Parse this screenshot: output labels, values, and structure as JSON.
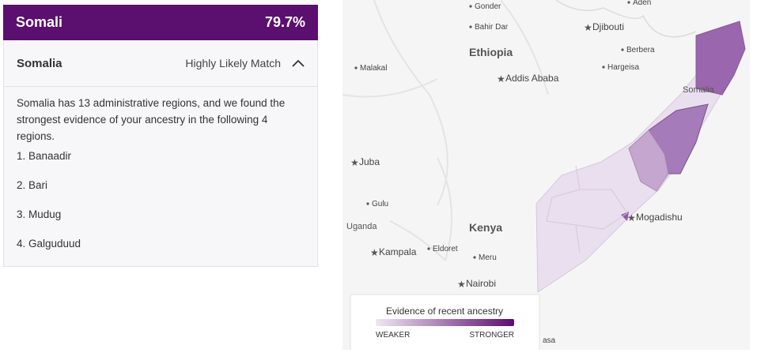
{
  "panel": {
    "title": "Somali",
    "percent": "79.7%",
    "country": "Somalia",
    "match": "Highly Likely Match",
    "description": "Somalia has 13 administrative regions, and we found the strongest evidence of your ancestry in the following 4 regions.",
    "regions": [
      "1. Banaadir",
      "2. Bari",
      "3. Mudug",
      "4. Galguduud"
    ]
  },
  "map": {
    "labels": [
      {
        "text": "Aden",
        "kind": "city"
      },
      {
        "text": "Gonder",
        "kind": "city"
      },
      {
        "text": "Bahir Dar",
        "kind": "city"
      },
      {
        "text": "Djibouti",
        "kind": "capital"
      },
      {
        "text": "Berbera",
        "kind": "city"
      },
      {
        "text": "Ethiopia",
        "kind": "country"
      },
      {
        "text": "Malakal",
        "kind": "city"
      },
      {
        "text": "Addis Ababa",
        "kind": "capital"
      },
      {
        "text": "Hargeisa",
        "kind": "city"
      },
      {
        "text": "Somalia",
        "kind": "country-small"
      },
      {
        "text": "Juba",
        "kind": "capital"
      },
      {
        "text": "Gulu",
        "kind": "city"
      },
      {
        "text": "Uganda",
        "kind": "country-small"
      },
      {
        "text": "Kenya",
        "kind": "country"
      },
      {
        "text": "Eldoret",
        "kind": "city"
      },
      {
        "text": "Kampala",
        "kind": "capital"
      },
      {
        "text": "Meru",
        "kind": "city"
      },
      {
        "text": "Mogadishu",
        "kind": "capital"
      },
      {
        "text": "Nairobi",
        "kind": "capital"
      },
      {
        "text": "asa",
        "kind": "city"
      }
    ],
    "legend": {
      "title": "Evidence of recent ancestry",
      "low": "WEAKER",
      "high": "STRONGER"
    }
  }
}
